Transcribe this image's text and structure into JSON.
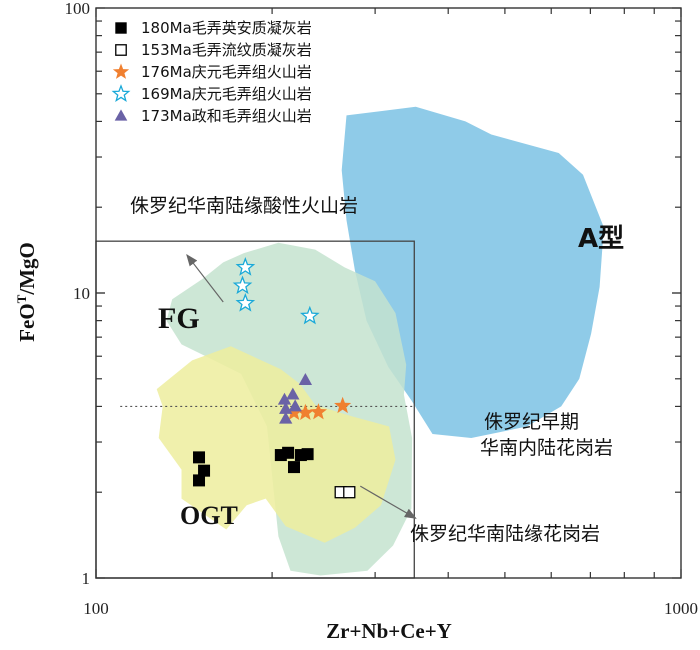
{
  "chart_data": {
    "type": "scatter",
    "xlabel": "Zr+Nb+Ce+Y",
    "ylabel": "FeO<sup>T</sup>/MgO",
    "ylabel_main": "FeO",
    "ylabel_sup": "T",
    "ylabel_tail": "/MgO",
    "xscale": "log",
    "yscale": "log",
    "xlim": [
      100,
      1000
    ],
    "ylim": [
      1,
      100
    ],
    "xticks": [
      100,
      1000
    ],
    "xtick_labels": [
      "100",
      "1000"
    ],
    "yticks": [
      1,
      10,
      100
    ],
    "ytick_labels": [
      "1",
      "10",
      "100"
    ],
    "legend_position": "top-left",
    "series": [
      {
        "name": "180Ma毛弄英安质凝灰岩",
        "marker": "filled-square",
        "color": "#000000",
        "points": [
          [
            150,
            2.65
          ],
          [
            153,
            2.38
          ],
          [
            150,
            2.2
          ],
          [
            207,
            2.7
          ],
          [
            213,
            2.75
          ],
          [
            218,
            2.45
          ],
          [
            224,
            2.7
          ],
          [
            230,
            2.72
          ]
        ]
      },
      {
        "name": "153Ma毛弄流纹质凝灰岩",
        "marker": "open-square",
        "color": "#000000",
        "points": [
          [
            262,
            2.0
          ],
          [
            271,
            2.0
          ]
        ]
      },
      {
        "name": "176Ma庆元毛弄组火山岩",
        "marker": "filled-star",
        "color": "#f08030",
        "points": [
          [
            218,
            3.8
          ],
          [
            228,
            3.8
          ],
          [
            240,
            3.82
          ],
          [
            264,
            4.02
          ]
        ]
      },
      {
        "name": "169Ma庆元毛弄组火山岩",
        "marker": "open-star",
        "color": "#1aa9d8",
        "points": [
          [
            180,
            12.3
          ],
          [
            178,
            10.6
          ],
          [
            180,
            9.2
          ],
          [
            232,
            8.3
          ]
        ]
      },
      {
        "name": "173Ma政和毛弄组火山岩",
        "marker": "filled-triangle",
        "color": "#6a62a6",
        "points": [
          [
            211,
            3.62
          ],
          [
            211,
            3.92
          ],
          [
            210,
            4.22
          ],
          [
            219,
            4.0
          ],
          [
            217,
            4.4
          ],
          [
            228,
            4.95
          ]
        ]
      }
    ],
    "regions": [
      {
        "name": "A型",
        "color": "#8fcbe8",
        "polygon": [
          [
            268,
            42
          ],
          [
            352,
            45
          ],
          [
            428,
            40
          ],
          [
            474,
            36
          ],
          [
            618,
            31
          ],
          [
            680,
            26
          ],
          [
            738,
            17
          ],
          [
            726,
            10.5
          ],
          [
            702,
            7.2
          ],
          [
            670,
            5.0
          ],
          [
            624,
            4.0
          ],
          [
            545,
            3.4
          ],
          [
            438,
            3.1
          ],
          [
            376,
            3.2
          ],
          [
            346,
            4.2
          ],
          [
            316,
            5.5
          ],
          [
            290,
            8.0
          ],
          [
            277,
            12.0
          ],
          [
            268,
            18
          ],
          [
            263,
            27
          ]
        ]
      },
      {
        "name": "FG",
        "color": "#c4e3cf",
        "polygon": [
          [
            179,
            13.8
          ],
          [
            205,
            15.0
          ],
          [
            237,
            14.2
          ],
          [
            266,
            12.3
          ],
          [
            300,
            11.0
          ],
          [
            325,
            8.5
          ],
          [
            339,
            5.6
          ],
          [
            336,
            4.4
          ],
          [
            347,
            3.1
          ],
          [
            346,
            1.75
          ],
          [
            322,
            1.3
          ],
          [
            291,
            1.06
          ],
          [
            242,
            1.02
          ],
          [
            215,
            1.06
          ],
          [
            205,
            1.4
          ],
          [
            196,
            3.4
          ],
          [
            177,
            5.2
          ],
          [
            154,
            6.0
          ],
          [
            140,
            6.6
          ],
          [
            132,
            8.0
          ],
          [
            135,
            9.5
          ],
          [
            152,
            11.2
          ],
          [
            165,
            12.8
          ]
        ]
      },
      {
        "name": "OGT",
        "color": "#eded9e",
        "polygon": [
          [
            146,
            5.8
          ],
          [
            170,
            6.5
          ],
          [
            207,
            5.4
          ],
          [
            223,
            4.8
          ],
          [
            237,
            4.05
          ],
          [
            273,
            3.7
          ],
          [
            317,
            3.4
          ],
          [
            325,
            2.6
          ],
          [
            307,
            1.8
          ],
          [
            277,
            1.5
          ],
          [
            246,
            1.33
          ],
          [
            211,
            1.52
          ],
          [
            195,
            1.9
          ],
          [
            181,
            1.8
          ],
          [
            167,
            1.48
          ],
          [
            140,
            1.9
          ],
          [
            140,
            2.4
          ],
          [
            128,
            3.1
          ],
          [
            130,
            4.0
          ],
          [
            127,
            4.6
          ]
        ]
      }
    ],
    "guides": [
      {
        "type": "box",
        "x": [
          100,
          350
        ],
        "y": [
          1,
          15.2
        ]
      },
      {
        "type": "dotted-line",
        "y": 4.0,
        "x": [
          110,
          350
        ]
      }
    ],
    "arrows": [
      {
        "from": [
          165,
          9.3
        ],
        "to": [
          143,
          13.6
        ]
      },
      {
        "from": [
          283,
          2.1
        ],
        "to": [
          352,
          1.62
        ]
      }
    ],
    "annotations": {
      "region_a": "A型",
      "region_fg": "FG",
      "region_ogt": "OGT",
      "acid_volcanic": "侏罗纪华南陆缘酸性火山岩",
      "inland_line1": "侏罗纪早期",
      "inland_line2": "华南内陆花岗岩",
      "margin_granite": "侏罗纪华南陆缘花岗岩"
    }
  }
}
